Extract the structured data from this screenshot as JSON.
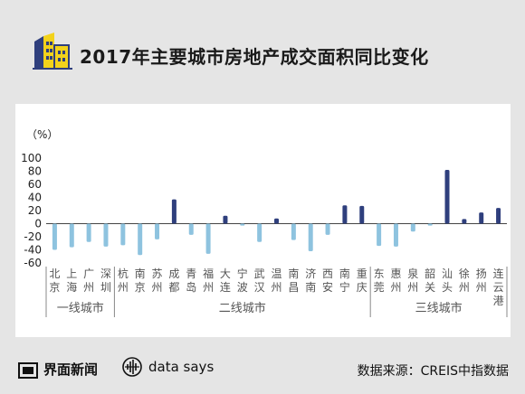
{
  "title": "2017年主要城市房地产成交面积同比变化",
  "footer": {
    "brand": "界面新闻",
    "datasays": "data says",
    "source": "数据来源：CREIS中指数据"
  },
  "colors": {
    "negative": "#8ec3df",
    "positive": "#2f3f7d",
    "axis": "#444444",
    "logo": "#f2d21b"
  },
  "chart_data": {
    "type": "bar",
    "ylabel": "（%）",
    "ylim": [
      -60,
      100
    ],
    "yticks": [
      100,
      80,
      60,
      40,
      20,
      0,
      -20,
      -40,
      -60
    ],
    "categories": [
      "北京",
      "上海",
      "广州",
      "深圳",
      "杭州",
      "南京",
      "苏州",
      "成都",
      "青岛",
      "福州",
      "大连",
      "宁波",
      "武汉",
      "温州",
      "南昌",
      "济南",
      "西安",
      "南宁",
      "重庆",
      "东莞",
      "惠州",
      "泉州",
      "韶关",
      "汕头",
      "徐州",
      "扬州",
      "连云港"
    ],
    "values": [
      -40,
      -36,
      -28,
      -35,
      -33,
      -48,
      -24,
      37,
      -17,
      -46,
      12,
      -3,
      -28,
      8,
      -25,
      -42,
      -17,
      28,
      27,
      -34,
      -35,
      -12,
      -3,
      82,
      7,
      17,
      24
    ],
    "groups": [
      {
        "name": "一线城市",
        "count": 4
      },
      {
        "name": "二线城市",
        "count": 15
      },
      {
        "name": "三线城市",
        "count": 8
      }
    ]
  }
}
